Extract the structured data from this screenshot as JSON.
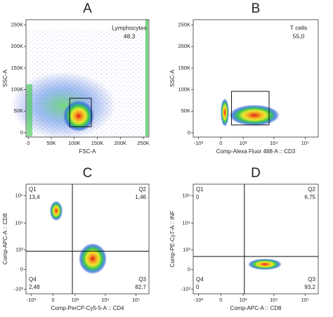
{
  "chart_data": [
    {
      "type": "scatter",
      "title": "A",
      "xlabel": "FSC-A",
      "ylabel": "SSC-A",
      "xscale": "linear",
      "yscale": "linear",
      "xlim": [
        -5000,
        262144
      ],
      "ylim": [
        -10000,
        262144
      ],
      "xticks": [
        0,
        {
          "value": 50000,
          "label": "50K"
        },
        {
          "value": 100000,
          "label": "100K"
        },
        {
          "value": 150000,
          "label": "150K"
        },
        {
          "value": 200000,
          "label": "200K"
        },
        {
          "value": 250000,
          "label": "250K"
        }
      ],
      "yticks": [
        0,
        {
          "value": 50000,
          "label": "50K"
        },
        {
          "value": 100000,
          "label": "100K"
        },
        {
          "value": 150000,
          "label": "150K"
        },
        {
          "value": 200000,
          "label": "200K"
        },
        {
          "value": 250000,
          "label": "250K"
        }
      ],
      "gate": {
        "name": "Lymphocytes",
        "value": "48,3",
        "x": [
          90000,
          137000
        ],
        "y": [
          14000,
          80000
        ]
      }
    },
    {
      "type": "scatter",
      "title": "B",
      "xlabel": "Comp-Alexa Fluor 488-A :: CD3",
      "ylabel": "SSC-A",
      "xscale": "biex",
      "yscale": "linear",
      "xlim": [
        -1500,
        262144
      ],
      "ylim": [
        -10000,
        262144
      ],
      "xticks": [
        {
          "value": -1000,
          "label": "-10³"
        },
        0,
        {
          "value": 1000,
          "label": "10³"
        },
        {
          "value": 10000,
          "label": "10⁴"
        },
        {
          "value": 100000,
          "label": "10⁵"
        }
      ],
      "yticks": [
        0,
        {
          "value": 50000,
          "label": "50K"
        },
        {
          "value": 100000,
          "label": "100K"
        },
        {
          "value": 150000,
          "label": "150K"
        },
        {
          "value": 200000,
          "label": "200K"
        },
        {
          "value": 250000,
          "label": "250K"
        }
      ],
      "gate": {
        "name": "T cells",
        "value": "55,0",
        "x": [
          350,
          7000
        ],
        "y": [
          18000,
          96000
        ]
      }
    },
    {
      "type": "scatter",
      "title": "C",
      "xlabel": "Comp-PerCP-Cy5-5-A :: CD4",
      "ylabel": "Comp-APC-A :: CD8",
      "xscale": "biex",
      "yscale": "biex",
      "xlim": [
        -1500,
        262144
      ],
      "ylim": [
        -1500,
        262144
      ],
      "xticks": [
        {
          "value": -1000,
          "label": "-10³"
        },
        0,
        {
          "value": 1000,
          "label": "10³"
        },
        {
          "value": 10000,
          "label": "10⁴"
        },
        {
          "value": 100000,
          "label": "10⁵"
        }
      ],
      "yticks": [
        {
          "value": -1000,
          "label": "-10³"
        },
        0,
        {
          "value": 1000,
          "label": "10³"
        },
        {
          "value": 10000,
          "label": "10⁴"
        },
        {
          "value": 100000,
          "label": "10⁵"
        }
      ],
      "quadrants": {
        "x": 800,
        "y": 900,
        "labels": [
          {
            "name": "Q1",
            "value": "13,4"
          },
          {
            "name": "Q2",
            "value": "1,46"
          },
          {
            "name": "Q4",
            "value": "2,48"
          },
          {
            "name": "Q3",
            "value": "82,7"
          }
        ]
      }
    },
    {
      "type": "scatter",
      "title": "D",
      "xlabel": "Comp-APC-A :: CD8",
      "ylabel": "Comp-PE-Cy7-A :: INF",
      "xscale": "biex",
      "yscale": "biex",
      "xlim": [
        -1500,
        262144
      ],
      "ylim": [
        -1500,
        262144
      ],
      "xticks": [
        {
          "value": -1000,
          "label": "-10³"
        },
        0,
        {
          "value": 1000,
          "label": "10³"
        },
        {
          "value": 10000,
          "label": "10⁴"
        },
        {
          "value": 100000,
          "label": "10⁵"
        }
      ],
      "yticks": [
        {
          "value": -1000,
          "label": "-10³"
        },
        0,
        {
          "value": 1000,
          "label": "10³"
        },
        {
          "value": 10000,
          "label": "10⁴"
        },
        {
          "value": 100000,
          "label": "10⁵"
        }
      ],
      "quadrants": {
        "x": 1100,
        "y": 535,
        "labels": [
          {
            "name": "Q1",
            "value": "0"
          },
          {
            "name": "Q2",
            "value": "6,75"
          },
          {
            "name": "Q4",
            "value": "0"
          },
          {
            "name": "Q3",
            "value": "93,2"
          }
        ]
      }
    }
  ]
}
